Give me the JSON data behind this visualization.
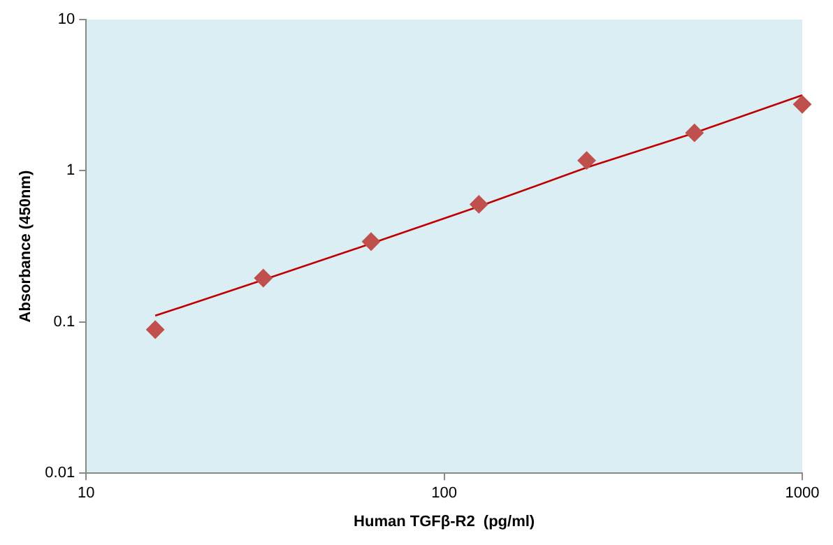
{
  "chart_data": {
    "type": "scatter",
    "xlabel": "Human TGFβ-R2  (pg/ml)",
    "ylabel": "Absorbance (450nm)",
    "log": "xy",
    "xlim": [
      10,
      1000
    ],
    "xticks": [
      10,
      100,
      1000
    ],
    "ylim": [
      0.01,
      10
    ],
    "yticks": [
      0.01,
      0.1,
      1,
      10
    ],
    "grid": false,
    "legend": false,
    "series": [
      {
        "marker": "diamond",
        "color": "#c0504d",
        "x": [
          15.6,
          31.25,
          62.5,
          125,
          250,
          500,
          1000
        ],
        "values": [
          0.089,
          0.195,
          0.34,
          0.6,
          1.17,
          1.78,
          2.75
        ]
      },
      {
        "type": "line",
        "marker": "none",
        "line_style": "solid",
        "color": "#c00000",
        "x": [
          15.6,
          31.25,
          62.5,
          125,
          250,
          500,
          1000
        ],
        "values": [
          0.11,
          0.19,
          0.33,
          0.58,
          1.05,
          1.78,
          3.16
        ]
      }
    ]
  }
}
